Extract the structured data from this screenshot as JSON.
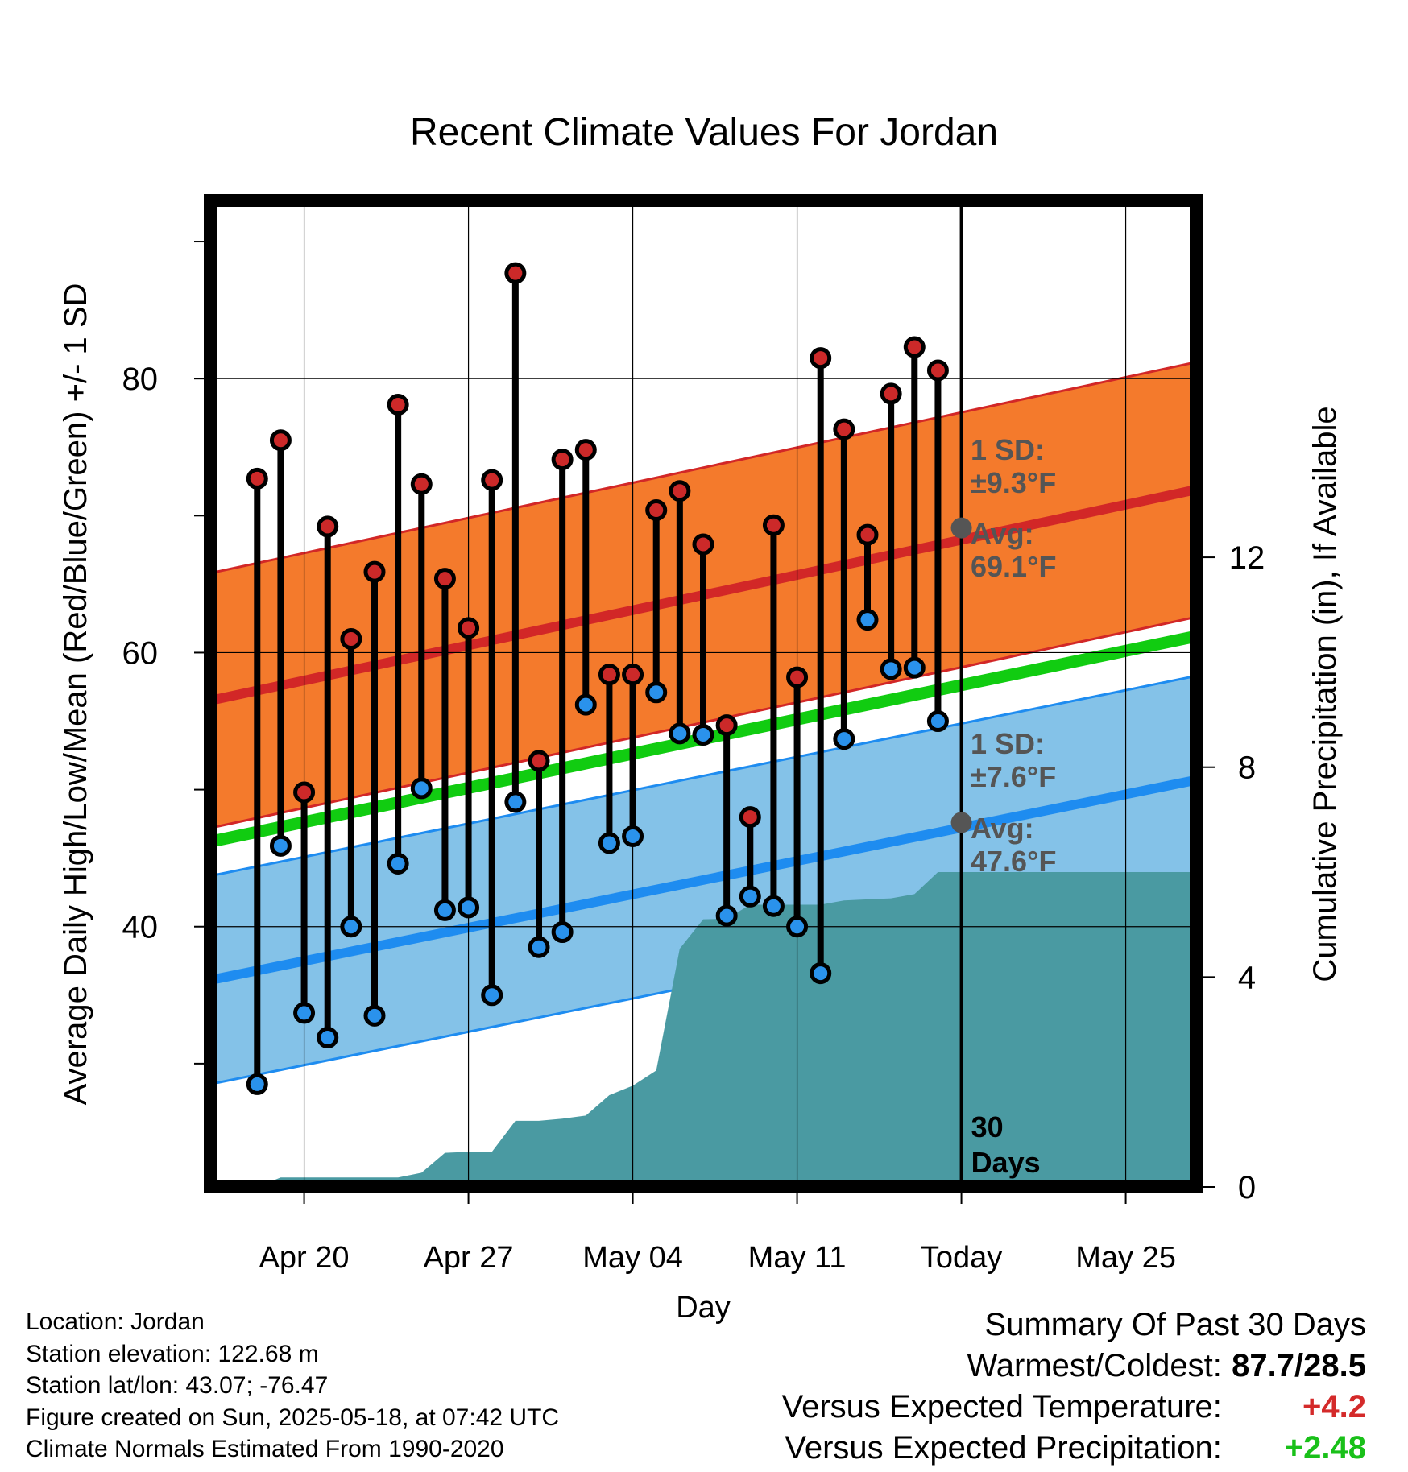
{
  "chart_data": {
    "type": "line",
    "title": "Recent Climate Values For Jordan",
    "xlabel": "Day",
    "ylabel": "Average Daily High/Low/Mean (Red/Blue/Green) +/- 1 SD",
    "y2label": "Cumulative Precipitation (in), If Available",
    "x_tick_labels": [
      "Apr 20",
      "Apr 27",
      "May 04",
      "May 11",
      "Today",
      "May 25"
    ],
    "x_tick_dates": [
      "2025-04-20",
      "2025-04-27",
      "2025-05-04",
      "2025-05-11",
      "2025-05-18",
      "2025-05-25"
    ],
    "xlim": [
      "2025-04-16",
      "2025-05-28"
    ],
    "ylim": [
      21,
      93
    ],
    "y_ticks": [
      40,
      60,
      80
    ],
    "y2lim": [
      0,
      18.8
    ],
    "y2_ticks": [
      0,
      4,
      8,
      12
    ],
    "grid": true,
    "today_marker": {
      "date": "2025-05-18",
      "label": "30\nDays"
    },
    "normals": {
      "high_mean": {
        "start": 56.5,
        "end": 71.9
      },
      "high_sd_label": "1 SD:\n±9.3°F",
      "high_avg_label": "Avg:\n69.1°F",
      "high_today": 69.1,
      "high_sd": 9.3,
      "mean": {
        "start": 46.2,
        "end": 61.2
      },
      "low_mean": {
        "start": 36.1,
        "end": 50.7
      },
      "low_sd_label": "1 SD:\n±7.6°F",
      "low_avg_label": "Avg:\n47.6°F",
      "low_today": 47.6,
      "low_sd": 7.6
    },
    "daily": {
      "dates": [
        "2025-04-18",
        "2025-04-19",
        "2025-04-20",
        "2025-04-21",
        "2025-04-22",
        "2025-04-23",
        "2025-04-24",
        "2025-04-25",
        "2025-04-26",
        "2025-04-27",
        "2025-04-28",
        "2025-04-29",
        "2025-04-30",
        "2025-05-01",
        "2025-05-02",
        "2025-05-03",
        "2025-05-04",
        "2025-05-05",
        "2025-05-06",
        "2025-05-07",
        "2025-05-08",
        "2025-05-09",
        "2025-05-10",
        "2025-05-11",
        "2025-05-12",
        "2025-05-13",
        "2025-05-14",
        "2025-05-15",
        "2025-05-16",
        "2025-05-17"
      ],
      "high": [
        72.7,
        75.5,
        49.8,
        69.2,
        61.0,
        65.9,
        78.1,
        72.3,
        65.4,
        61.8,
        72.6,
        87.7,
        52.1,
        74.1,
        74.8,
        58.4,
        58.4,
        70.4,
        71.8,
        67.9,
        54.7,
        48.0,
        69.3,
        58.2,
        81.5,
        76.3,
        68.6,
        78.9,
        82.3,
        80.6
      ],
      "low": [
        28.5,
        45.9,
        33.7,
        31.9,
        40.0,
        33.5,
        44.6,
        50.1,
        41.2,
        41.4,
        35.0,
        49.1,
        38.5,
        39.6,
        56.2,
        46.1,
        46.6,
        57.1,
        54.1,
        54.0,
        40.8,
        42.2,
        41.5,
        40.0,
        36.6,
        53.7,
        62.4,
        58.8,
        58.9,
        55.0
      ]
    },
    "precip": {
      "dates": [
        "2025-04-17",
        "2025-04-18",
        "2025-04-19",
        "2025-04-20",
        "2025-04-21",
        "2025-04-22",
        "2025-04-23",
        "2025-04-24",
        "2025-04-25",
        "2025-04-26",
        "2025-04-27",
        "2025-04-28",
        "2025-04-29",
        "2025-04-30",
        "2025-05-01",
        "2025-05-02",
        "2025-05-03",
        "2025-05-04",
        "2025-05-05",
        "2025-05-06",
        "2025-05-07",
        "2025-05-08",
        "2025-05-09",
        "2025-05-10",
        "2025-05-11",
        "2025-05-12",
        "2025-05-13",
        "2025-05-14",
        "2025-05-15",
        "2025-05-16",
        "2025-05-17",
        "2025-05-18",
        "2025-05-28"
      ],
      "cumulative": [
        0.0,
        0.0,
        0.18,
        0.18,
        0.18,
        0.18,
        0.18,
        0.18,
        0.27,
        0.65,
        0.67,
        0.67,
        1.26,
        1.26,
        1.3,
        1.36,
        1.75,
        1.93,
        2.22,
        4.54,
        5.1,
        5.11,
        5.38,
        5.38,
        5.38,
        5.38,
        5.46,
        5.48,
        5.5,
        5.58,
        6.0,
        6.0,
        6.0
      ]
    },
    "colors": {
      "high_point": "#cc2929",
      "low_point": "#2a92ec",
      "high_band": "#f47a2c",
      "high_line": "#d22727",
      "low_band": "#84c2e8",
      "low_line": "#1e8cf0",
      "mean_line": "#11cc11",
      "precip_fill": "#4a9aa2",
      "avg_text": "#555555"
    }
  },
  "info": {
    "location": "Location: Jordan",
    "elevation": "Station elevation: 122.68 m",
    "latlon": "Station lat/lon: 43.07; -76.47",
    "created": "Figure created on Sun, 2025-05-18, at 07:42 UTC",
    "normals": "Climate Normals Estimated From 1990-2020"
  },
  "summary": {
    "heading": "Summary Of Past 30 Days",
    "warmest_label": "Warmest/Coldest:",
    "warmest_value": "87.7/28.5",
    "temp_label": "Versus Expected Temperature:",
    "temp_value": "+4.2",
    "precip_label": "Versus Expected Precipitation:",
    "precip_value": "+2.48"
  }
}
